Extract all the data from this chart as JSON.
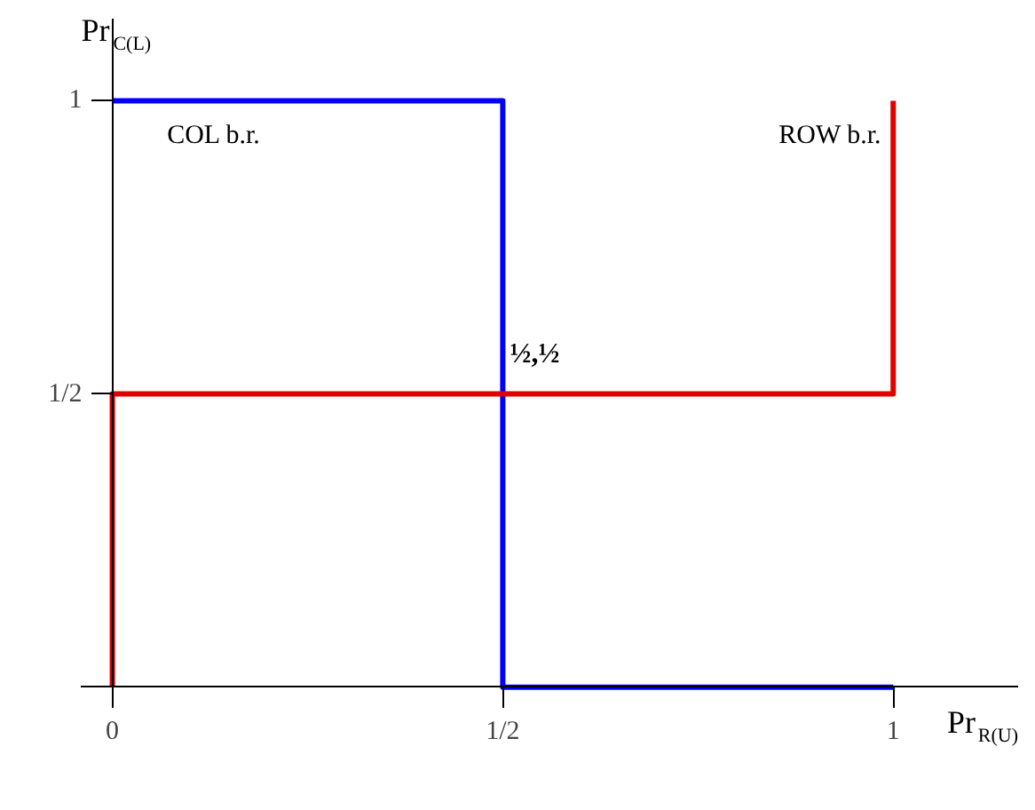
{
  "chart_data": {
    "type": "line",
    "xlabel": "Pr$_{R(U)}$",
    "ylabel": "Pr$_{C(L)}$",
    "xlim": [
      -0.04,
      1.16
    ],
    "ylim": [
      -0.03,
      1.14
    ],
    "xticks": [
      0,
      {
        "value": 0.5,
        "label": "1/2"
      },
      1
    ],
    "yticks": [
      {
        "value": 0.5,
        "label": "1/2"
      },
      1
    ],
    "grid": false,
    "marker": "none",
    "line_style": "solid",
    "series": [
      {
        "name": "COL b.r.",
        "color": "#0000ff",
        "x": [
          0,
          0.5,
          0.5,
          1
        ],
        "values": [
          1,
          1,
          0,
          0
        ]
      },
      {
        "name": "ROW b.r.",
        "color": "#e00000",
        "x": [
          0,
          0,
          1,
          1
        ],
        "values": [
          0,
          0.5,
          0.5,
          1
        ]
      }
    ],
    "annotations": [
      {
        "text": "½,½",
        "x": 0.5,
        "y": 0.5
      }
    ]
  }
}
